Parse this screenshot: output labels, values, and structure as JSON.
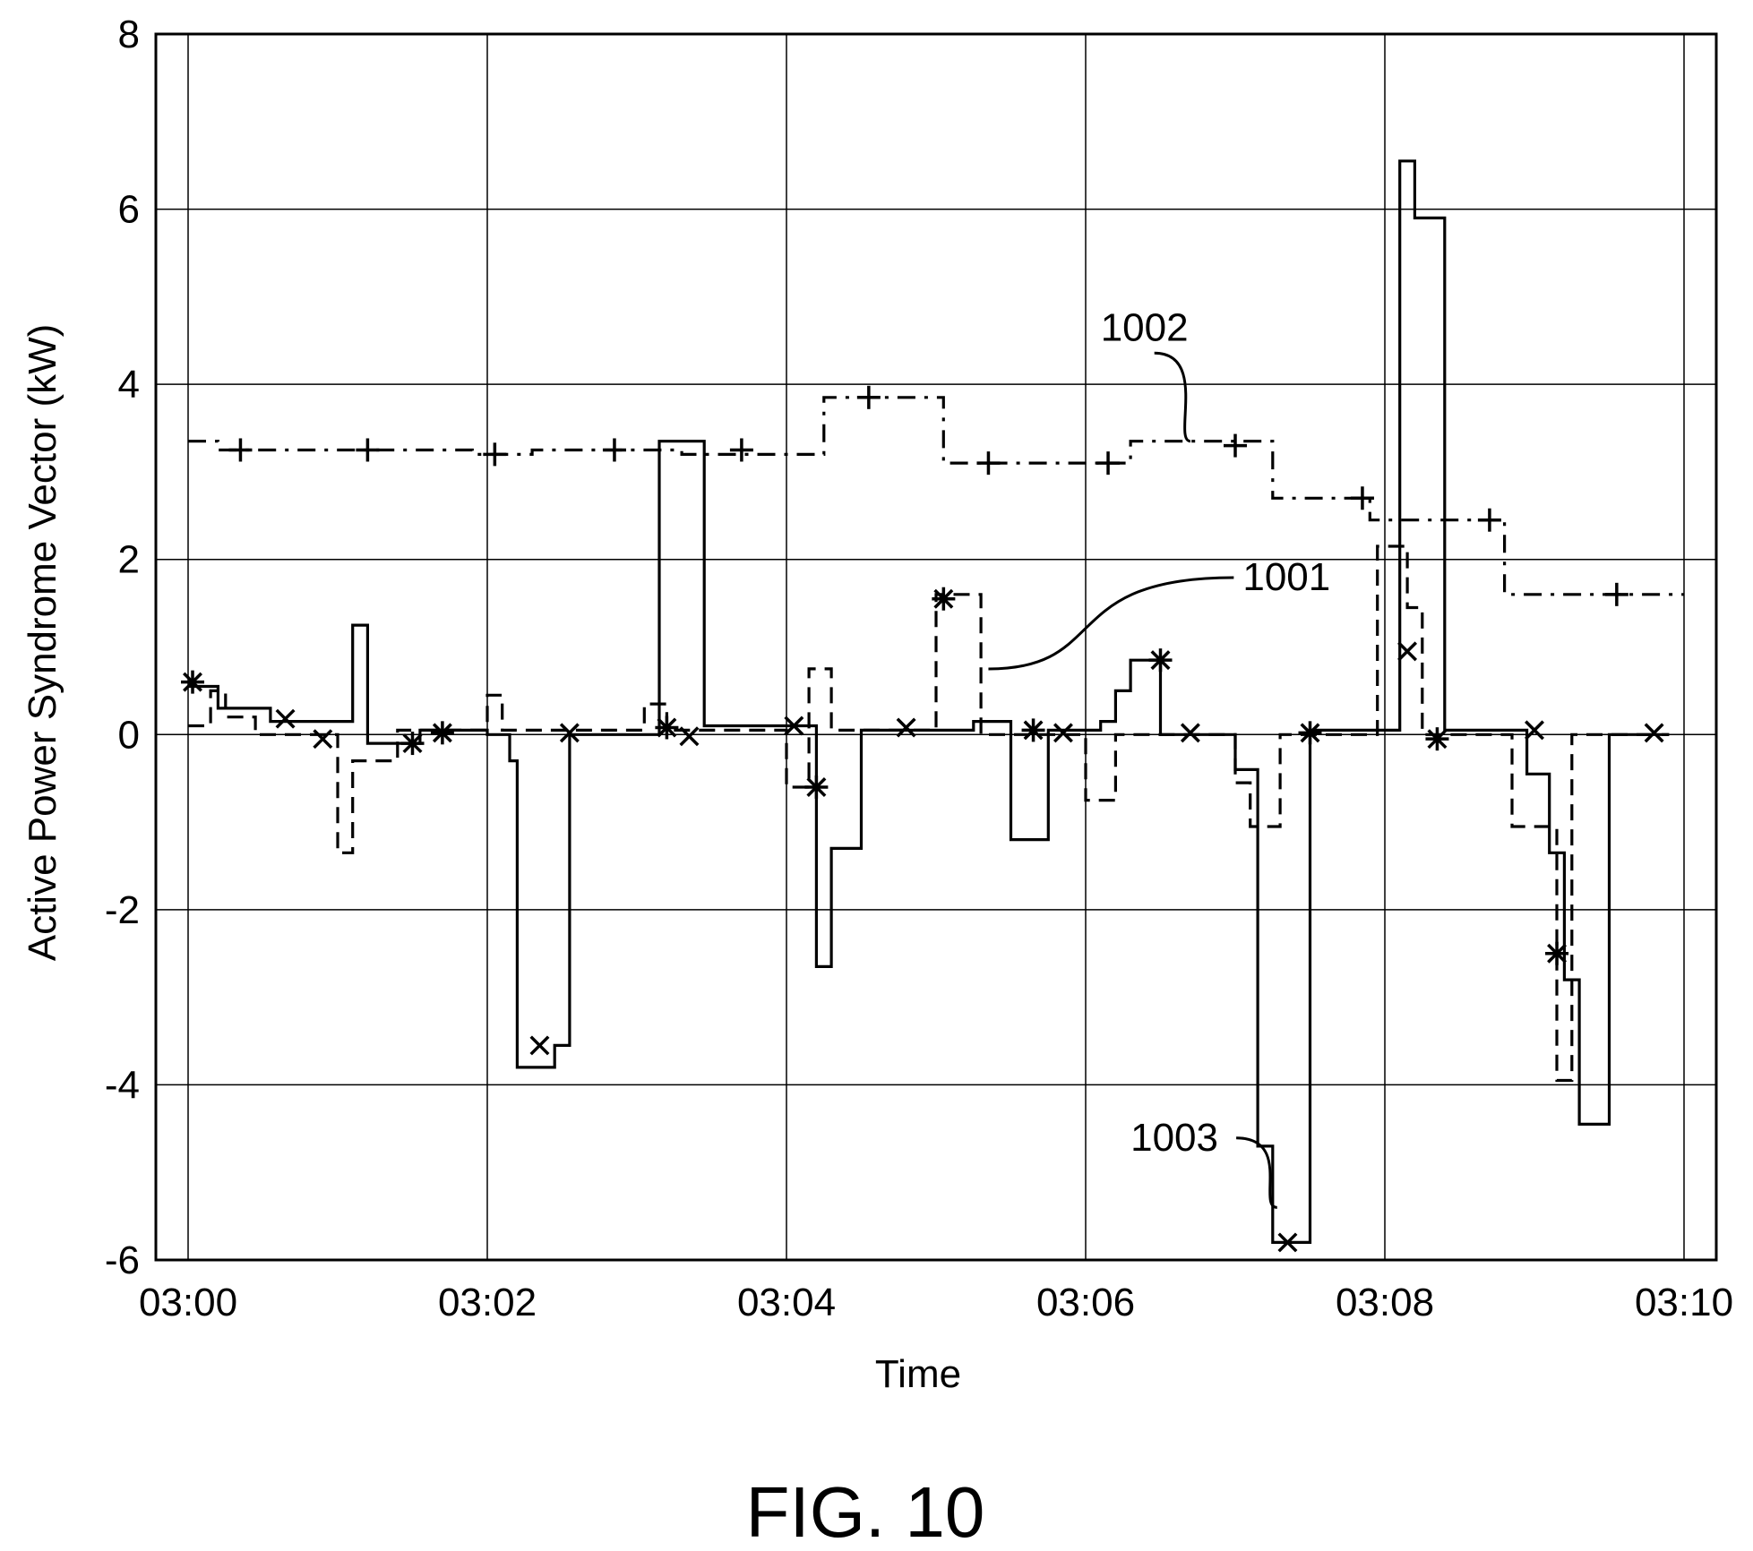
{
  "chart_data": {
    "type": "line",
    "title": "",
    "xlabel": "Time",
    "ylabel": "Active Power Syndrome Vector (kW)",
    "xlim": [
      0,
      10
    ],
    "ylim": [
      -6,
      8
    ],
    "grid": true,
    "x_tick_labels": [
      "03:00",
      "03:02",
      "03:04",
      "03:06",
      "03:08",
      "03:10"
    ],
    "x_tick_values": [
      0,
      2,
      4,
      6,
      8,
      10
    ],
    "y_tick_labels": [
      "-6",
      "-4",
      "-2",
      "0",
      "2",
      "4",
      "6",
      "8"
    ],
    "y_tick_values": [
      -6,
      -4,
      -2,
      0,
      2,
      4,
      6,
      8
    ],
    "x_units": "minutes after 03:00",
    "series": [
      {
        "name": "1002",
        "style": "dashdot",
        "marker": "plus",
        "values": [
          [
            0.0,
            3.35
          ],
          [
            0.2,
            3.35
          ],
          [
            0.2,
            3.25
          ],
          [
            1.9,
            3.25
          ],
          [
            1.9,
            3.2
          ],
          [
            2.3,
            3.2
          ],
          [
            2.3,
            3.25
          ],
          [
            3.3,
            3.25
          ],
          [
            3.3,
            3.2
          ],
          [
            4.25,
            3.2
          ],
          [
            4.25,
            3.85
          ],
          [
            5.05,
            3.85
          ],
          [
            5.05,
            3.1
          ],
          [
            6.3,
            3.1
          ],
          [
            6.3,
            3.35
          ],
          [
            7.25,
            3.35
          ],
          [
            7.25,
            2.7
          ],
          [
            7.9,
            2.7
          ],
          [
            7.9,
            2.45
          ],
          [
            8.8,
            2.45
          ],
          [
            8.8,
            1.6
          ],
          [
            10.0,
            1.6
          ]
        ],
        "markers": [
          [
            0.35,
            3.25
          ],
          [
            1.2,
            3.25
          ],
          [
            2.05,
            3.2
          ],
          [
            2.85,
            3.25
          ],
          [
            3.7,
            3.25
          ],
          [
            4.55,
            3.85
          ],
          [
            5.35,
            3.1
          ],
          [
            6.15,
            3.1
          ],
          [
            7.0,
            3.3
          ],
          [
            7.85,
            2.7
          ],
          [
            8.7,
            2.45
          ],
          [
            9.55,
            1.6
          ]
        ]
      },
      {
        "name": "1001",
        "style": "dashed",
        "marker": "asterisk",
        "values": [
          [
            0.0,
            0.1
          ],
          [
            0.15,
            0.1
          ],
          [
            0.15,
            0.5
          ],
          [
            0.25,
            0.5
          ],
          [
            0.25,
            0.2
          ],
          [
            0.45,
            0.2
          ],
          [
            0.45,
            0.0
          ],
          [
            1.0,
            0.0
          ],
          [
            1.0,
            -1.35
          ],
          [
            1.1,
            -1.35
          ],
          [
            1.1,
            -0.3
          ],
          [
            1.4,
            -0.3
          ],
          [
            1.4,
            0.05
          ],
          [
            2.0,
            0.05
          ],
          [
            2.0,
            0.45
          ],
          [
            2.1,
            0.45
          ],
          [
            2.1,
            0.05
          ],
          [
            3.05,
            0.05
          ],
          [
            3.05,
            0.35
          ],
          [
            3.2,
            0.35
          ],
          [
            3.2,
            0.05
          ],
          [
            4.0,
            0.05
          ],
          [
            4.0,
            -0.6
          ],
          [
            4.15,
            -0.6
          ],
          [
            4.15,
            0.75
          ],
          [
            4.3,
            0.75
          ],
          [
            4.3,
            0.05
          ],
          [
            5.0,
            0.05
          ],
          [
            5.0,
            1.6
          ],
          [
            5.3,
            1.6
          ],
          [
            5.3,
            0.0
          ],
          [
            6.0,
            0.0
          ],
          [
            6.0,
            -0.75
          ],
          [
            6.2,
            -0.75
          ],
          [
            6.2,
            0.0
          ],
          [
            7.0,
            0.0
          ],
          [
            7.0,
            -0.55
          ],
          [
            7.1,
            -0.55
          ],
          [
            7.1,
            -1.05
          ],
          [
            7.3,
            -1.05
          ],
          [
            7.3,
            0.0
          ],
          [
            7.95,
            0.0
          ],
          [
            7.95,
            2.15
          ],
          [
            8.15,
            2.15
          ],
          [
            8.15,
            1.45
          ],
          [
            8.25,
            1.45
          ],
          [
            8.25,
            0.0
          ],
          [
            8.85,
            0.0
          ],
          [
            8.85,
            -1.05
          ],
          [
            9.15,
            -1.05
          ],
          [
            9.15,
            -3.95
          ],
          [
            9.25,
            -3.95
          ],
          [
            9.25,
            0.0
          ],
          [
            9.9,
            0.0
          ]
        ],
        "markers": [
          [
            0.03,
            0.6
          ],
          [
            1.5,
            -0.1
          ],
          [
            1.7,
            0.02
          ],
          [
            3.2,
            0.08
          ],
          [
            4.2,
            -0.6
          ],
          [
            5.05,
            1.55
          ],
          [
            5.65,
            0.05
          ],
          [
            6.5,
            0.85
          ],
          [
            7.5,
            0.02
          ],
          [
            8.35,
            -0.05
          ],
          [
            9.15,
            -2.5
          ]
        ]
      },
      {
        "name": "1003",
        "style": "solid",
        "marker": "x",
        "values": [
          [
            0.0,
            0.55
          ],
          [
            0.2,
            0.55
          ],
          [
            0.2,
            0.3
          ],
          [
            0.55,
            0.3
          ],
          [
            0.55,
            0.15
          ],
          [
            1.1,
            0.15
          ],
          [
            1.1,
            1.25
          ],
          [
            1.2,
            1.25
          ],
          [
            1.2,
            -0.1
          ],
          [
            1.55,
            -0.1
          ],
          [
            1.55,
            0.05
          ],
          [
            2.0,
            0.05
          ],
          [
            2.0,
            0.0
          ],
          [
            2.15,
            0.0
          ],
          [
            2.15,
            -0.3
          ],
          [
            2.2,
            -0.3
          ],
          [
            2.2,
            -3.8
          ],
          [
            2.45,
            -3.8
          ],
          [
            2.45,
            -3.55
          ],
          [
            2.55,
            -3.55
          ],
          [
            2.55,
            0.0
          ],
          [
            3.15,
            0.0
          ],
          [
            3.15,
            3.35
          ],
          [
            3.45,
            3.35
          ],
          [
            3.45,
            0.1
          ],
          [
            4.2,
            0.1
          ],
          [
            4.2,
            -2.65
          ],
          [
            4.3,
            -2.65
          ],
          [
            4.3,
            -1.3
          ],
          [
            4.5,
            -1.3
          ],
          [
            4.5,
            0.05
          ],
          [
            5.25,
            0.05
          ],
          [
            5.25,
            0.15
          ],
          [
            5.5,
            0.15
          ],
          [
            5.5,
            -1.2
          ],
          [
            5.75,
            -1.2
          ],
          [
            5.75,
            0.05
          ],
          [
            6.1,
            0.05
          ],
          [
            6.1,
            0.15
          ],
          [
            6.2,
            0.15
          ],
          [
            6.2,
            0.5
          ],
          [
            6.3,
            0.5
          ],
          [
            6.3,
            0.85
          ],
          [
            6.5,
            0.85
          ],
          [
            6.5,
            0.0
          ],
          [
            7.0,
            0.0
          ],
          [
            7.0,
            -0.4
          ],
          [
            7.15,
            -0.4
          ],
          [
            7.15,
            -4.7
          ],
          [
            7.25,
            -4.7
          ],
          [
            7.25,
            -5.8
          ],
          [
            7.5,
            -5.8
          ],
          [
            7.5,
            0.05
          ],
          [
            8.1,
            0.05
          ],
          [
            8.1,
            6.55
          ],
          [
            8.2,
            6.55
          ],
          [
            8.2,
            5.9
          ],
          [
            8.4,
            5.9
          ],
          [
            8.4,
            0.05
          ],
          [
            8.95,
            0.05
          ],
          [
            8.95,
            -0.45
          ],
          [
            9.1,
            -0.45
          ],
          [
            9.1,
            -1.35
          ],
          [
            9.2,
            -1.35
          ],
          [
            9.2,
            -2.8
          ],
          [
            9.3,
            -2.8
          ],
          [
            9.3,
            -4.45
          ],
          [
            9.5,
            -4.45
          ],
          [
            9.5,
            0.0
          ],
          [
            9.9,
            0.0
          ]
        ],
        "markers": [
          [
            0.65,
            0.18
          ],
          [
            0.9,
            -0.05
          ],
          [
            2.35,
            -3.55
          ],
          [
            2.55,
            0.02
          ],
          [
            3.35,
            -0.02
          ],
          [
            4.05,
            0.1
          ],
          [
            4.8,
            0.08
          ],
          [
            5.85,
            0.02
          ],
          [
            6.7,
            0.02
          ],
          [
            7.35,
            -5.8
          ],
          [
            8.15,
            0.95
          ],
          [
            9.0,
            0.05
          ],
          [
            9.8,
            0.02
          ]
        ]
      }
    ],
    "annotations": [
      {
        "text": "1002",
        "x": 6.1,
        "y": 4.5,
        "points_to": [
          6.7,
          3.35
        ]
      },
      {
        "text": "1001",
        "x": 7.05,
        "y": 1.65,
        "points_to": [
          5.35,
          0.75
        ]
      },
      {
        "text": "1003",
        "x": 6.3,
        "y": -4.75,
        "points_to": [
          7.28,
          -5.4
        ]
      }
    ],
    "caption": "FIG. 10"
  }
}
